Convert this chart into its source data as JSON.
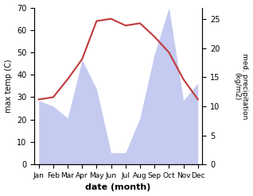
{
  "months": [
    "Jan",
    "Feb",
    "Mar",
    "Apr",
    "May",
    "Jun",
    "Jul",
    "Aug",
    "Sep",
    "Oct",
    "Nov",
    "Dec"
  ],
  "temp": [
    29,
    30,
    38,
    47,
    64,
    65,
    62,
    63,
    57,
    50,
    38,
    29
  ],
  "precip": [
    11,
    10,
    8,
    18,
    13,
    2,
    2,
    8,
    19,
    27,
    11,
    14
  ],
  "temp_color": "#c0393b",
  "precip_color_fill": "#c5caf0",
  "temp_ylim": [
    0,
    70
  ],
  "precip_ylim": [
    0,
    27
  ],
  "precip_right_ticks": [
    0,
    5,
    10,
    15,
    20,
    25
  ],
  "temp_left_ticks": [
    0,
    10,
    20,
    30,
    40,
    50,
    60,
    70
  ],
  "xlabel": "date (month)",
  "ylabel_left": "max temp (C)",
  "ylabel_right": "med. precipitation\n(kg/m2)",
  "figsize": [
    3.18,
    2.47
  ],
  "dpi": 100
}
